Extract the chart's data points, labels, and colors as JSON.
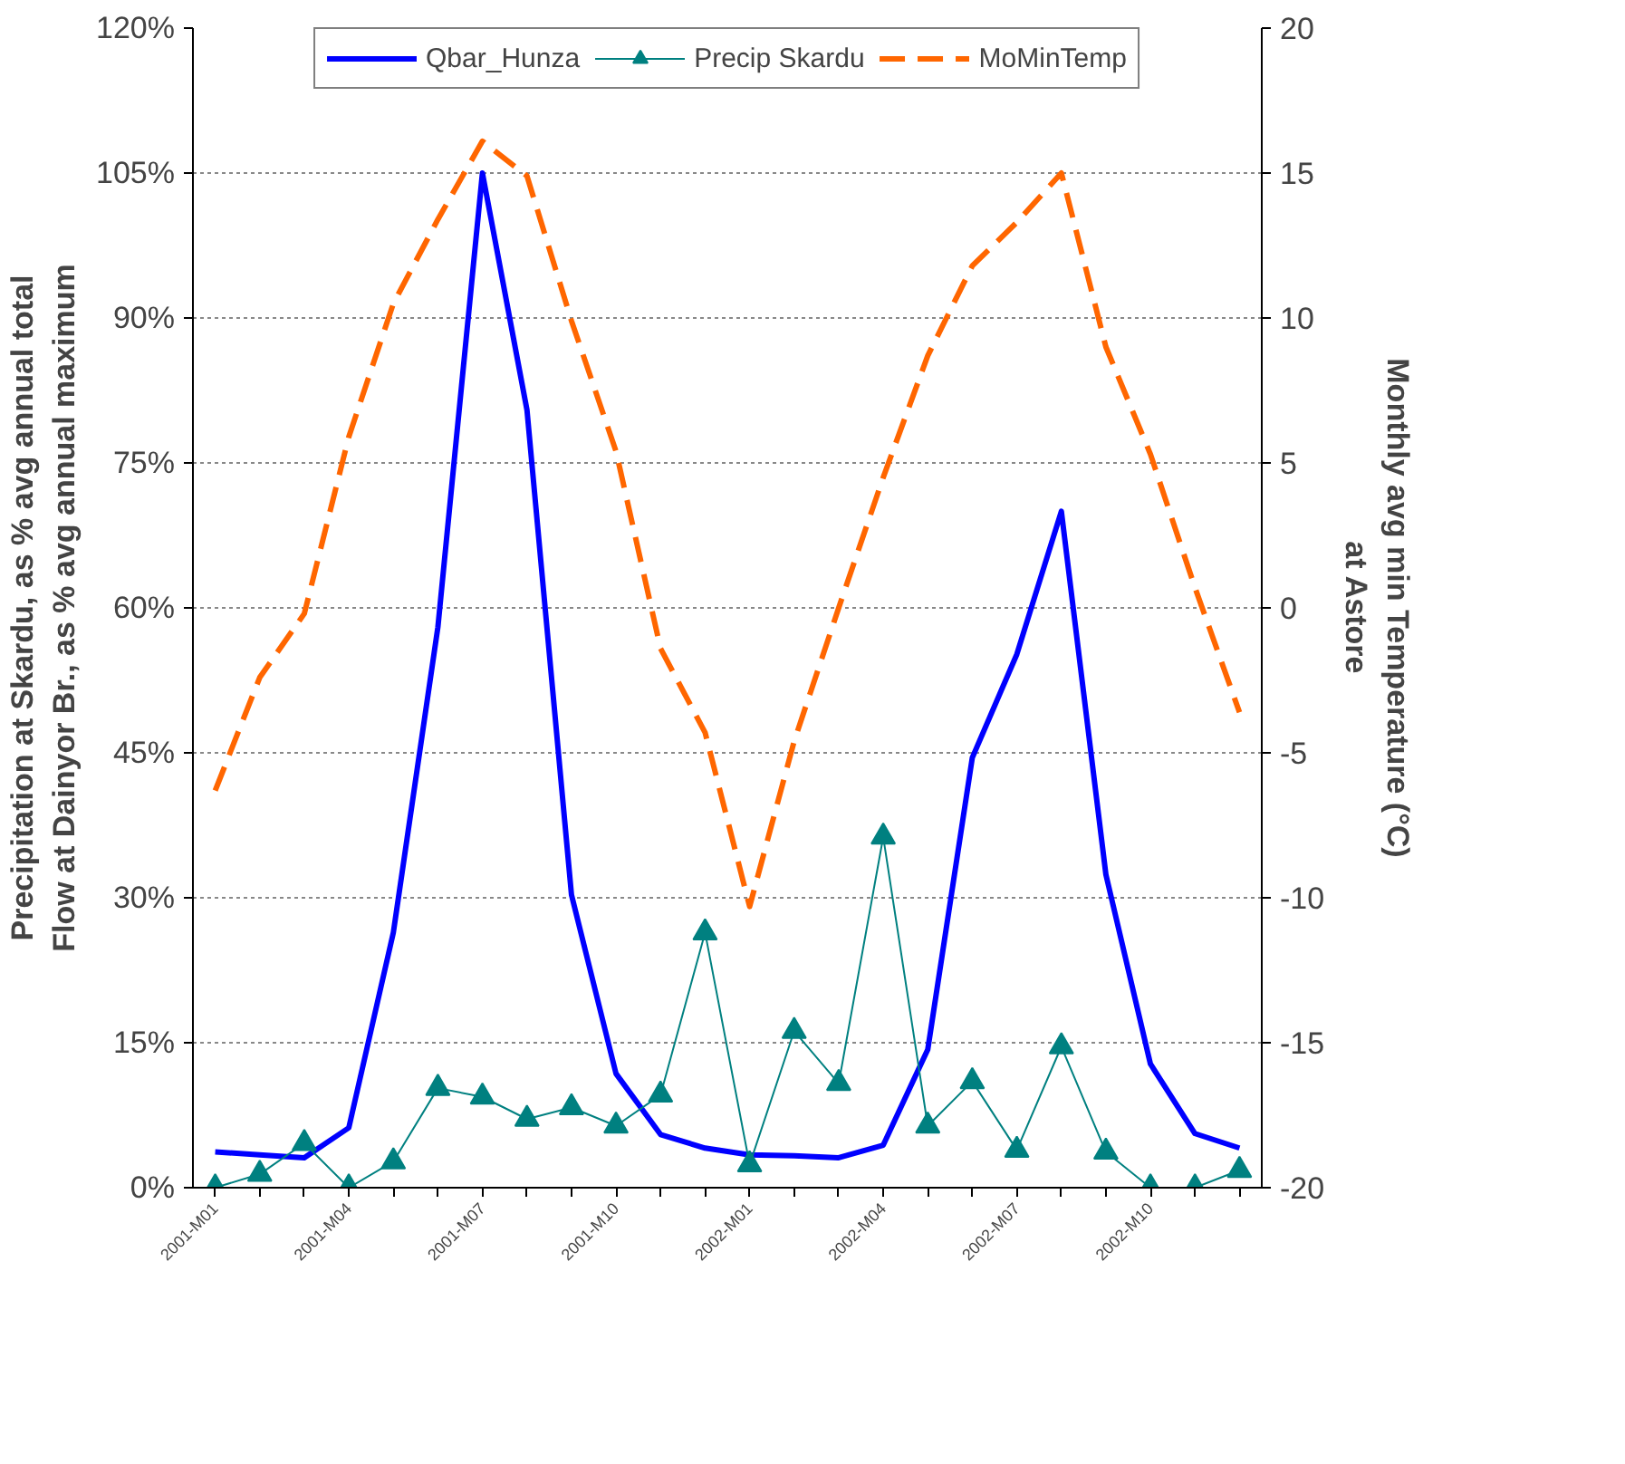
{
  "chart_data": {
    "type": "line",
    "ylabel": "Precipitation at Skardu, as % avg annual total\nFlow at Dainyor Br., as % avg annual maximum",
    "y2label": "Monthly avg min Temperature (°C)\nat Astore",
    "categories": [
      "2001-M01",
      null,
      null,
      "2001-M04",
      null,
      null,
      "2001-M07",
      null,
      null,
      "2001-M10",
      null,
      null,
      "2002-M01",
      null,
      null,
      "2002-M04",
      null,
      null,
      "2002-M07",
      null,
      null,
      "2002-M10",
      null,
      null
    ],
    "series": [
      {
        "name": "Qbar_Hunza",
        "color": "#0000ff",
        "line_style": "solid",
        "marker": "none",
        "values": [
          3.7,
          3.4,
          3.1,
          6.2,
          26.4,
          58,
          105,
          80.5,
          30.3,
          11.8,
          5.5,
          4.1,
          3.4,
          3.3,
          3.1,
          4.4,
          14.3,
          44.5,
          55.2,
          70,
          32.4,
          12.8,
          5.6,
          4.1
        ]
      },
      {
        "name": "Precip Skardu",
        "color": "#008080",
        "line_style": "solid",
        "marker": "triangle",
        "values": [
          0,
          1.4,
          4.6,
          0,
          2.7,
          10.3,
          9.4,
          7.1,
          8.3,
          6.4,
          9.6,
          26.4,
          2.4,
          16.2,
          10.8,
          36.3,
          6.4,
          11.0,
          3.9,
          14.6,
          3.7,
          0,
          0,
          1.8
        ]
      },
      {
        "name": "MoMinTemp",
        "color": "#ff6600",
        "line_style": "dashed",
        "marker": "none",
        "axis": "y2",
        "values": [
          -6.3,
          -2.4,
          -0.2,
          5.9,
          10.5,
          13.4,
          16.1,
          14.9,
          9.9,
          5.4,
          -1.4,
          -4.3,
          -10.3,
          -4.6,
          0,
          4.5,
          8.7,
          11.8,
          13.3,
          15,
          9.0,
          5.3,
          0.7,
          -3.6
        ]
      }
    ],
    "ylim": [
      0,
      120
    ],
    "yticks": [
      {
        "value": 0,
        "label": "0%"
      },
      {
        "value": 15,
        "label": "15%"
      },
      {
        "value": 30,
        "label": "30%"
      },
      {
        "value": 45,
        "label": "45%"
      },
      {
        "value": 60,
        "label": "60%"
      },
      {
        "value": 75,
        "label": "75%"
      },
      {
        "value": 90,
        "label": "90%"
      },
      {
        "value": 105,
        "label": "105%"
      },
      {
        "value": 120,
        "label": "120%"
      }
    ],
    "y2lim": [
      -20,
      20
    ],
    "y2ticks": [
      -20,
      -15,
      -10,
      -5,
      0,
      5,
      10,
      15,
      20
    ],
    "grid": "y",
    "legend": "top"
  }
}
